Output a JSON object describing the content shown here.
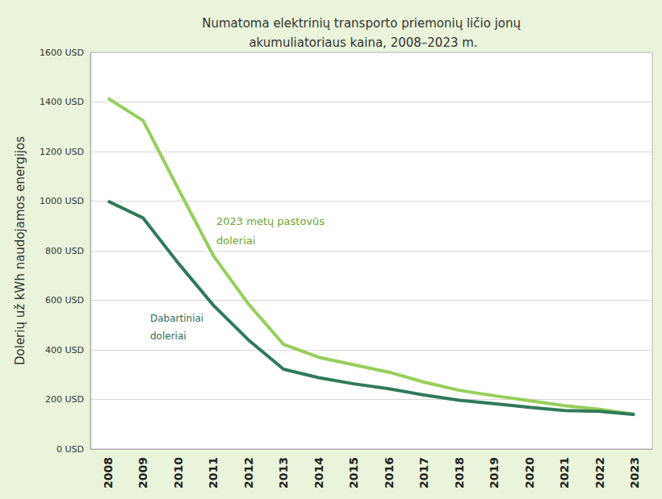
{
  "chart_data": {
    "type": "line",
    "title": "Numatoma elektrinių transporto priemonių ličio jonų akumuliatoriaus kaina, 2008–2023 m.",
    "y_label": "Dolerių už kWh naudojamos energijos",
    "categories": [
      "2008",
      "2009",
      "2010",
      "2011",
      "2012",
      "2013",
      "2014",
      "2015",
      "2016",
      "2017",
      "2018",
      "2019",
      "2020",
      "2021",
      "2022",
      "2023"
    ],
    "series": [
      {
        "name": "2023 metų pastovūs doleriai",
        "color": "#95cf5a",
        "values": [
          1415,
          1325,
          1050,
          780,
          585,
          422,
          370,
          340,
          310,
          270,
          237,
          215,
          195,
          175,
          160,
          140
        ]
      },
      {
        "name": "Dabartiniai doleriai",
        "color": "#2f7a58",
        "values": [
          1000,
          932,
          750,
          580,
          440,
          322,
          288,
          263,
          243,
          218,
          197,
          183,
          168,
          155,
          152,
          139
        ]
      }
    ],
    "ylim": [
      0,
      1600
    ],
    "yticks": [
      {
        "value": 0,
        "label": "0 USD"
      },
      {
        "value": 200,
        "label": "200 USD"
      },
      {
        "value": 400,
        "label": "400 USD"
      },
      {
        "value": 600,
        "label": "600 USD"
      },
      {
        "value": 800,
        "label": "800 USD"
      },
      {
        "value": 1000,
        "label": "1000 USD"
      },
      {
        "value": 1200,
        "label": "1200 USD"
      },
      {
        "value": 1400,
        "label": "1400 USD"
      },
      {
        "value": 1600,
        "label": "1600 USD"
      }
    ],
    "grid": true
  }
}
